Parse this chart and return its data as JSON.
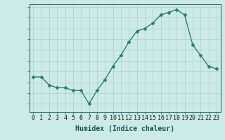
{
  "x": [
    0,
    1,
    2,
    3,
    4,
    5,
    6,
    7,
    8,
    9,
    10,
    11,
    12,
    13,
    14,
    15,
    16,
    17,
    18,
    19,
    20,
    21,
    22,
    23
  ],
  "y": [
    17,
    17,
    15.5,
    15,
    15,
    14.5,
    14.5,
    12,
    14.5,
    16.5,
    19,
    21,
    23.5,
    25.5,
    26,
    27,
    28.5,
    29,
    29.5,
    28.5,
    23,
    21,
    19,
    18.5
  ],
  "line_color": "#2e7d6e",
  "marker": "D",
  "marker_size": 2.5,
  "bg_color": "#cceae7",
  "grid_color": "#b0d4d0",
  "xlabel": "Humidex (Indice chaleur)",
  "xlabel_fontsize": 7,
  "tick_fontsize": 6,
  "ylim": [
    10.5,
    30.5
  ],
  "yticks": [
    11,
    13,
    15,
    17,
    19,
    21,
    23,
    25,
    27,
    29
  ],
  "xticks": [
    0,
    1,
    2,
    3,
    4,
    5,
    6,
    7,
    8,
    9,
    10,
    11,
    12,
    13,
    14,
    15,
    16,
    17,
    18,
    19,
    20,
    21,
    22,
    23
  ]
}
